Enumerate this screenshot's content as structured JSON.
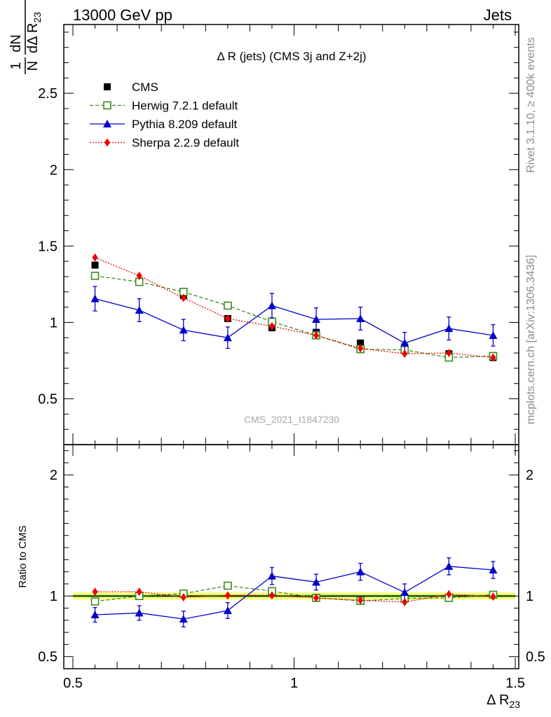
{
  "header": {
    "left": "13000 GeV pp",
    "right": "Jets"
  },
  "side_text": {
    "version": "Rivet 3.1.10, ≥ 400k events",
    "site": "mcplots.cern.ch [arXiv:1306.3436]"
  },
  "watermark": "CMS_2021_I1847230",
  "chart_data": [
    {
      "type": "scatter",
      "panel": "main",
      "title": "Δ R (jets) (CMS 3j and Z+2j)",
      "ylabel_num": "1",
      "ylabel_den": "N",
      "ylabel_dn": "dN",
      "ylabel_dr": "dΔ R",
      "ylabel_sub": "23",
      "xlim": [
        0.5,
        1.5
      ],
      "ylim": [
        0.2,
        2.95
      ],
      "yticks": [
        {
          "v": 0.5,
          "label": "0.5"
        },
        {
          "v": 1,
          "label": "1"
        },
        {
          "v": 1.5,
          "label": "1.5"
        },
        {
          "v": 2,
          "label": "2"
        },
        {
          "v": 2.5,
          "label": "2.5"
        }
      ],
      "legend_position": "top-left",
      "x": [
        0.55,
        0.65,
        0.75,
        0.85,
        0.95,
        1.05,
        1.15,
        1.25,
        1.35,
        1.45
      ],
      "series": [
        {
          "name": "CMS",
          "color": "#000000",
          "marker": "square-filled",
          "line": "none",
          "values": [
            1.375,
            1.265,
            1.175,
            1.025,
            0.965,
            0.935,
            0.865,
            0.84,
            0.795,
            0.77
          ]
        },
        {
          "name": "Herwig 7.2.1 default",
          "color": "#3a8a1a",
          "marker": "square-open",
          "line": "dashed",
          "values": [
            1.305,
            1.265,
            1.2,
            1.11,
            1.005,
            0.915,
            0.825,
            0.82,
            0.77,
            0.78
          ]
        },
        {
          "name": "Pythia 8.209 default",
          "color": "#0000cc",
          "marker": "triangle",
          "line": "solid",
          "values": [
            1.155,
            1.08,
            0.95,
            0.9,
            1.11,
            1.02,
            1.025,
            0.865,
            0.96,
            0.915
          ],
          "errors": [
            0.08,
            0.075,
            0.07,
            0.07,
            0.08,
            0.075,
            0.075,
            0.07,
            0.075,
            0.07
          ]
        },
        {
          "name": "Sherpa 2.2.9 default",
          "color": "#ee0000",
          "marker": "diamond",
          "line": "dotted",
          "values": [
            1.425,
            1.305,
            1.16,
            1.025,
            0.975,
            0.915,
            0.83,
            0.795,
            0.8,
            0.77
          ]
        }
      ]
    },
    {
      "type": "scatter",
      "panel": "ratio",
      "ylabel": "Ratio to CMS",
      "xlabel": "Δ R",
      "xlabel_sub": "23",
      "xlim": [
        0.5,
        1.5
      ],
      "ylim": [
        0.4,
        2.25
      ],
      "yticks": [
        {
          "v": 0.5,
          "label": "0.5"
        },
        {
          "v": 1,
          "label": "1"
        },
        {
          "v": 2,
          "label": "2"
        }
      ],
      "xticks": [
        {
          "v": 0.5,
          "label": "0.5"
        },
        {
          "v": 1,
          "label": "1"
        },
        {
          "v": 1.5,
          "label": "1.5"
        }
      ],
      "x": [
        0.55,
        0.65,
        0.75,
        0.85,
        0.95,
        1.05,
        1.15,
        1.25,
        1.35,
        1.45
      ],
      "band_halfwidth": [
        0.03,
        0.03,
        0.03,
        0.03,
        0.03,
        0.03,
        0.03,
        0.03,
        0.03,
        0.03
      ],
      "series": [
        {
          "name": "Herwig 7.2.1 default",
          "color": "#3a8a1a",
          "marker": "square-open",
          "line": "dashed",
          "values": [
            0.955,
            1.0,
            1.02,
            1.085,
            1.04,
            0.985,
            0.96,
            0.98,
            0.985,
            1.01
          ]
        },
        {
          "name": "Pythia 8.209 default",
          "color": "#0000cc",
          "marker": "triangle",
          "line": "solid",
          "values": [
            0.845,
            0.86,
            0.81,
            0.88,
            1.165,
            1.115,
            1.2,
            1.03,
            1.245,
            1.215
          ],
          "errors": [
            0.06,
            0.06,
            0.065,
            0.065,
            0.07,
            0.065,
            0.07,
            0.07,
            0.07,
            0.07
          ]
        },
        {
          "name": "Sherpa 2.2.9 default",
          "color": "#ee0000",
          "marker": "diamond",
          "line": "dotted",
          "values": [
            1.035,
            1.035,
            0.99,
            1.005,
            1.005,
            0.985,
            0.965,
            0.95,
            1.015,
            0.995
          ]
        }
      ]
    }
  ]
}
